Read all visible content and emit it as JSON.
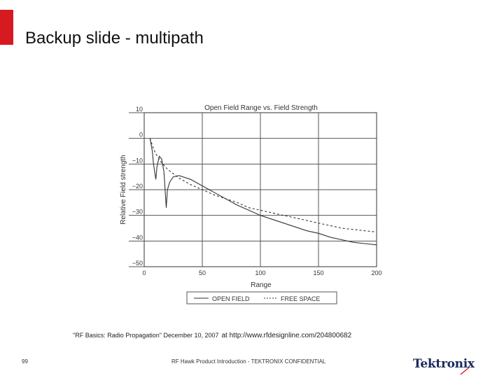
{
  "slide": {
    "title": "Backup slide - multipath",
    "reference": "\"RF Basics: Radio Propagation\" December 10, 2007",
    "reference_note": "at http://www.rfdesignline.com/204800682",
    "page_number": "99",
    "footer": "RF Hawk Product Introduction - TEKTRONIX CONFIDENTIAL",
    "logo_text": "Tektronix",
    "brand_color": "#d71920"
  },
  "chart_data": {
    "type": "line",
    "title": "Open Field Range vs. Field Strength",
    "xlabel": "Range",
    "ylabel": "Relative Field strength",
    "xlim": [
      0,
      200
    ],
    "ylim": [
      -50,
      10
    ],
    "x_ticks": [
      "0",
      "50",
      "100",
      "150",
      "200"
    ],
    "y_ticks": [
      "10",
      "0",
      "−10",
      "−20",
      "−30",
      "−40",
      "−50"
    ],
    "grid": true,
    "legend_position": "bottom",
    "series": [
      {
        "name": "OPEN FIELD",
        "style": "solid",
        "points": [
          [
            5,
            0
          ],
          [
            7,
            -5
          ],
          [
            8,
            -10
          ],
          [
            10,
            -16
          ],
          [
            11,
            -11
          ],
          [
            13,
            -7
          ],
          [
            15,
            -8
          ],
          [
            17,
            -13
          ],
          [
            19,
            -27
          ],
          [
            20,
            -20
          ],
          [
            22,
            -17
          ],
          [
            25,
            -15
          ],
          [
            30,
            -14.5
          ],
          [
            40,
            -16
          ],
          [
            50,
            -18.5
          ],
          [
            60,
            -21
          ],
          [
            70,
            -23.5
          ],
          [
            80,
            -26
          ],
          [
            90,
            -28
          ],
          [
            100,
            -30
          ],
          [
            110,
            -31.5
          ],
          [
            120,
            -33
          ],
          [
            130,
            -34.5
          ],
          [
            140,
            -36
          ],
          [
            150,
            -37
          ],
          [
            160,
            -38.5
          ],
          [
            170,
            -39.5
          ],
          [
            180,
            -40.5
          ],
          [
            190,
            -41
          ],
          [
            200,
            -41.5
          ]
        ]
      },
      {
        "name": "FREE SPACE",
        "style": "dashed",
        "points": [
          [
            5,
            0
          ],
          [
            8,
            -4
          ],
          [
            10,
            -6
          ],
          [
            15,
            -9.5
          ],
          [
            20,
            -12
          ],
          [
            30,
            -15.5
          ],
          [
            40,
            -18
          ],
          [
            50,
            -20
          ],
          [
            60,
            -22
          ],
          [
            70,
            -23.5
          ],
          [
            80,
            -25
          ],
          [
            90,
            -27
          ],
          [
            100,
            -28
          ],
          [
            110,
            -29
          ],
          [
            120,
            -30
          ],
          [
            130,
            -31
          ],
          [
            140,
            -32
          ],
          [
            150,
            -33
          ],
          [
            160,
            -34
          ],
          [
            170,
            -35
          ],
          [
            180,
            -35.5
          ],
          [
            190,
            -36
          ],
          [
            200,
            -36.5
          ]
        ]
      }
    ]
  }
}
